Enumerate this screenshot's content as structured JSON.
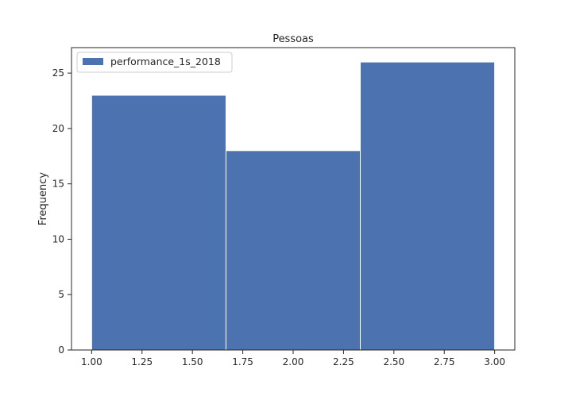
{
  "chart_data": {
    "type": "bar",
    "title": "Pessoas",
    "xlabel": "",
    "ylabel": "Frequency",
    "bins": [
      {
        "start": 1.0,
        "end": 1.6667,
        "value": 23
      },
      {
        "start": 1.6667,
        "end": 2.3333,
        "value": 18
      },
      {
        "start": 2.3333,
        "end": 3.0,
        "value": 26
      }
    ],
    "series": [
      {
        "name": "performance_1s_2018",
        "values": [
          23,
          18,
          26
        ]
      }
    ],
    "xlim": [
      0.9,
      3.1
    ],
    "ylim": [
      0,
      27.3
    ],
    "xticks": [
      1.0,
      1.25,
      1.5,
      1.75,
      2.0,
      2.25,
      2.5,
      2.75,
      3.0
    ],
    "xtick_labels": [
      "1.00",
      "1.25",
      "1.50",
      "1.75",
      "2.00",
      "2.25",
      "2.50",
      "2.75",
      "3.00"
    ],
    "yticks": [
      0,
      5,
      10,
      15,
      20,
      25
    ],
    "ytick_labels": [
      "0",
      "5",
      "10",
      "15",
      "20",
      "25"
    ],
    "bar_color": "#4c72b0",
    "legend_position": "upper-left",
    "grid": false
  }
}
